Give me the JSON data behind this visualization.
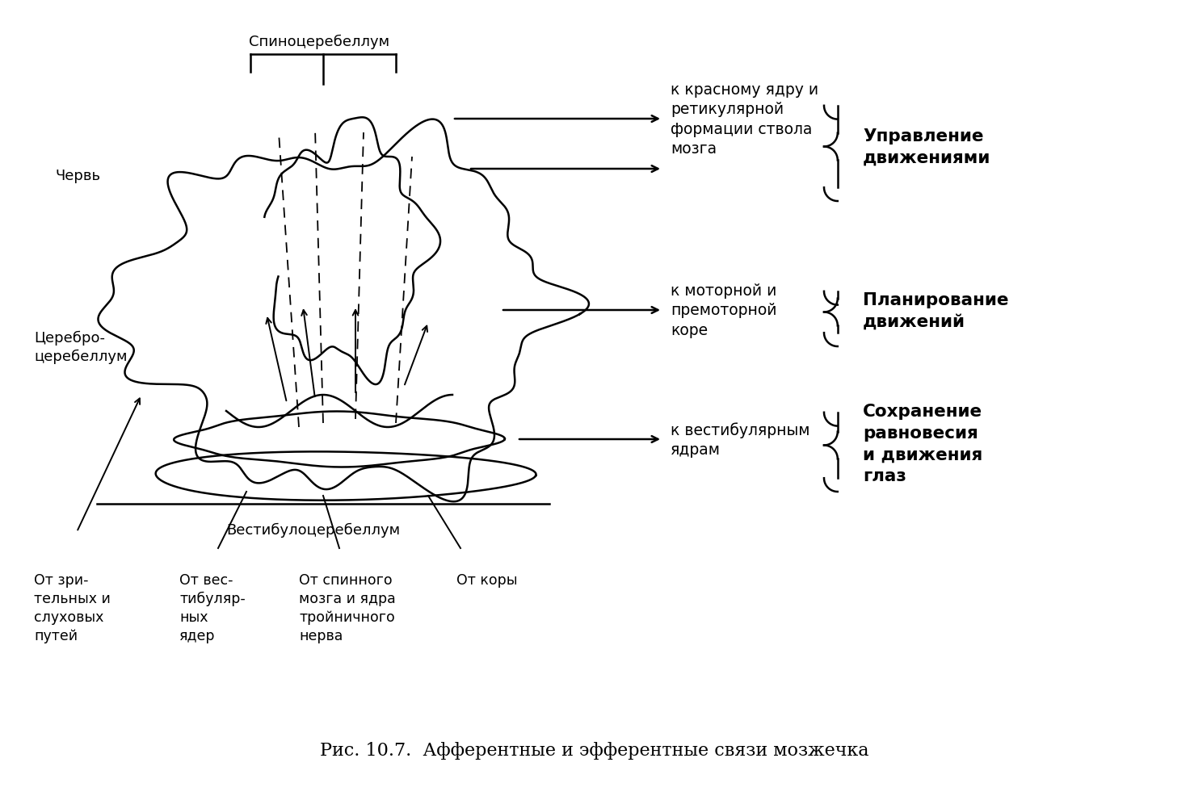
{
  "title": "Рис. 10.7.  Афферентные и эфферентные связи мозжечка",
  "bg_color": "#ffffff",
  "text_color": "#000000",
  "labels": {
    "spinocerebellum": "Спиноцеребеллум",
    "vermis": "Червь",
    "cerebrocerebellum": "Церебро-\nцеребеллум",
    "vestibulocerebellum": "Вестибулоцеребеллум",
    "from_visual": "От зри-\nтельных и\nслуховых\nпутей",
    "from_vestibular": "От вес-\nтибуляр-\nных\nядер",
    "from_spinal": "От спинного\nмозга и ядра\nтройничного\nнерва",
    "from_cortex": "От коры",
    "to_red_nucleus": "к красному ядру и\nретикулярной\nформации ствола\nмозга",
    "to_motor_cortex": "к моторной и\nпремоторной\nкоре",
    "to_vestibular": "к вестибулярным\nядрам",
    "motor_control": "Управление\nдвижениями",
    "planning": "Планирование\nдвижений",
    "balance": "Сохранение\nравновесия\nи движения\nглаз"
  }
}
